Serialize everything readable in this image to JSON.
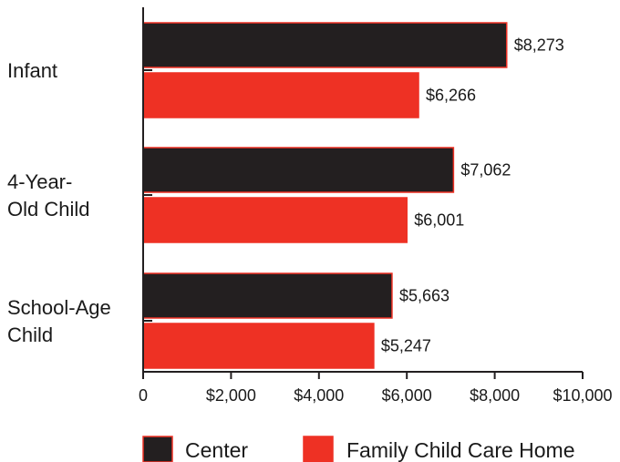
{
  "chart_data": {
    "type": "bar",
    "orientation": "horizontal",
    "categories": [
      [
        "Infant"
      ],
      [
        "4-Year-",
        "Old Child"
      ],
      [
        "School-Age",
        "Child"
      ]
    ],
    "series": [
      {
        "name": "Center",
        "color": "#231f20",
        "values": [
          8273,
          7062,
          5663
        ],
        "labels": [
          "$8,273",
          "$7,062",
          "$5,663"
        ]
      },
      {
        "name": "Family Child Care Home",
        "color": "#ee3124",
        "values": [
          6266,
          6001,
          5247
        ],
        "labels": [
          "$6,266",
          "$6,001",
          "$5,247"
        ]
      }
    ],
    "xlim": [
      0,
      10000
    ],
    "xticks": [
      0,
      2000,
      4000,
      6000,
      8000,
      10000
    ],
    "xtick_labels": [
      "0",
      "$2,000",
      "$4,000",
      "$6,000",
      "$8,000",
      "$10,000"
    ],
    "bar_outline_color": "#ee3124",
    "grid": false,
    "legend_position": "bottom"
  }
}
